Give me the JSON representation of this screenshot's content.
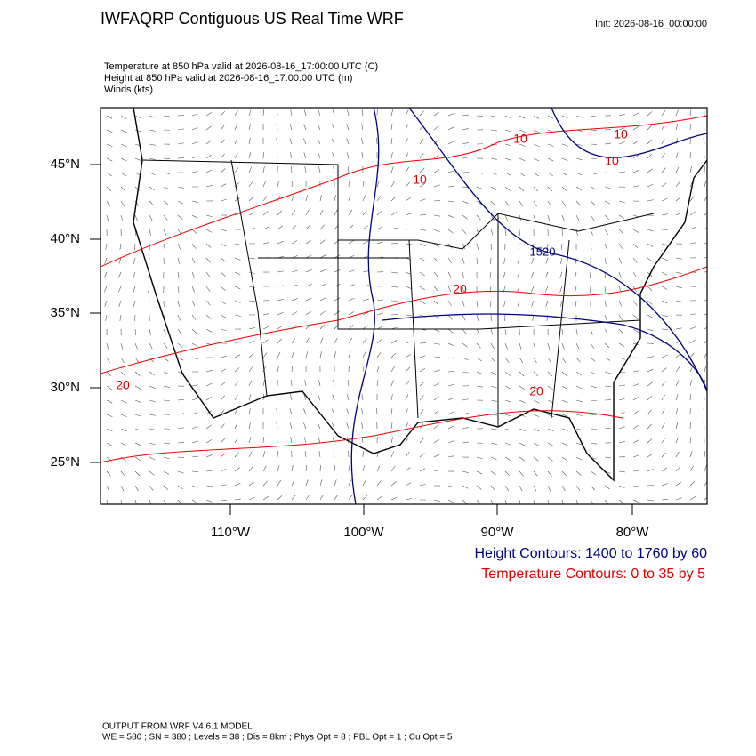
{
  "title": "IWFAQRP Contiguous US Real Time WRF",
  "init": "Init: 2026-08-16_00:00:00",
  "fields": [
    "Temperature at 850 hPa valid at 2026-08-16_17:00:00 UTC   (C)",
    "Height at 850 hPa valid at 2026-08-16_17:00:00 UTC   (m)",
    "Winds   (kts)"
  ],
  "map": {
    "lat_labels": [
      "45°N",
      "40°N",
      "35°N",
      "30°N",
      "25°N"
    ],
    "lon_labels": [
      "110°W",
      "100°W",
      "90°W",
      "80°W"
    ],
    "temperature_contour_labels": [
      "10",
      "10",
      "10",
      "10",
      "20",
      "20",
      "20"
    ],
    "height_contour_labels": [
      "1520"
    ]
  },
  "legend": [
    "Height Contours: 1400 to 1760 by 60",
    "Temperature Contours: 0 to 35 by 5"
  ],
  "footer": [
    "OUTPUT FROM WRF V4.6.1 MODEL",
    "WE = 580 ; SN = 380 ; Levels = 38 ; Dis = 8km ; Phys Opt = 8 ; PBL Opt = 1 ; Cu Opt = 5"
  ]
}
